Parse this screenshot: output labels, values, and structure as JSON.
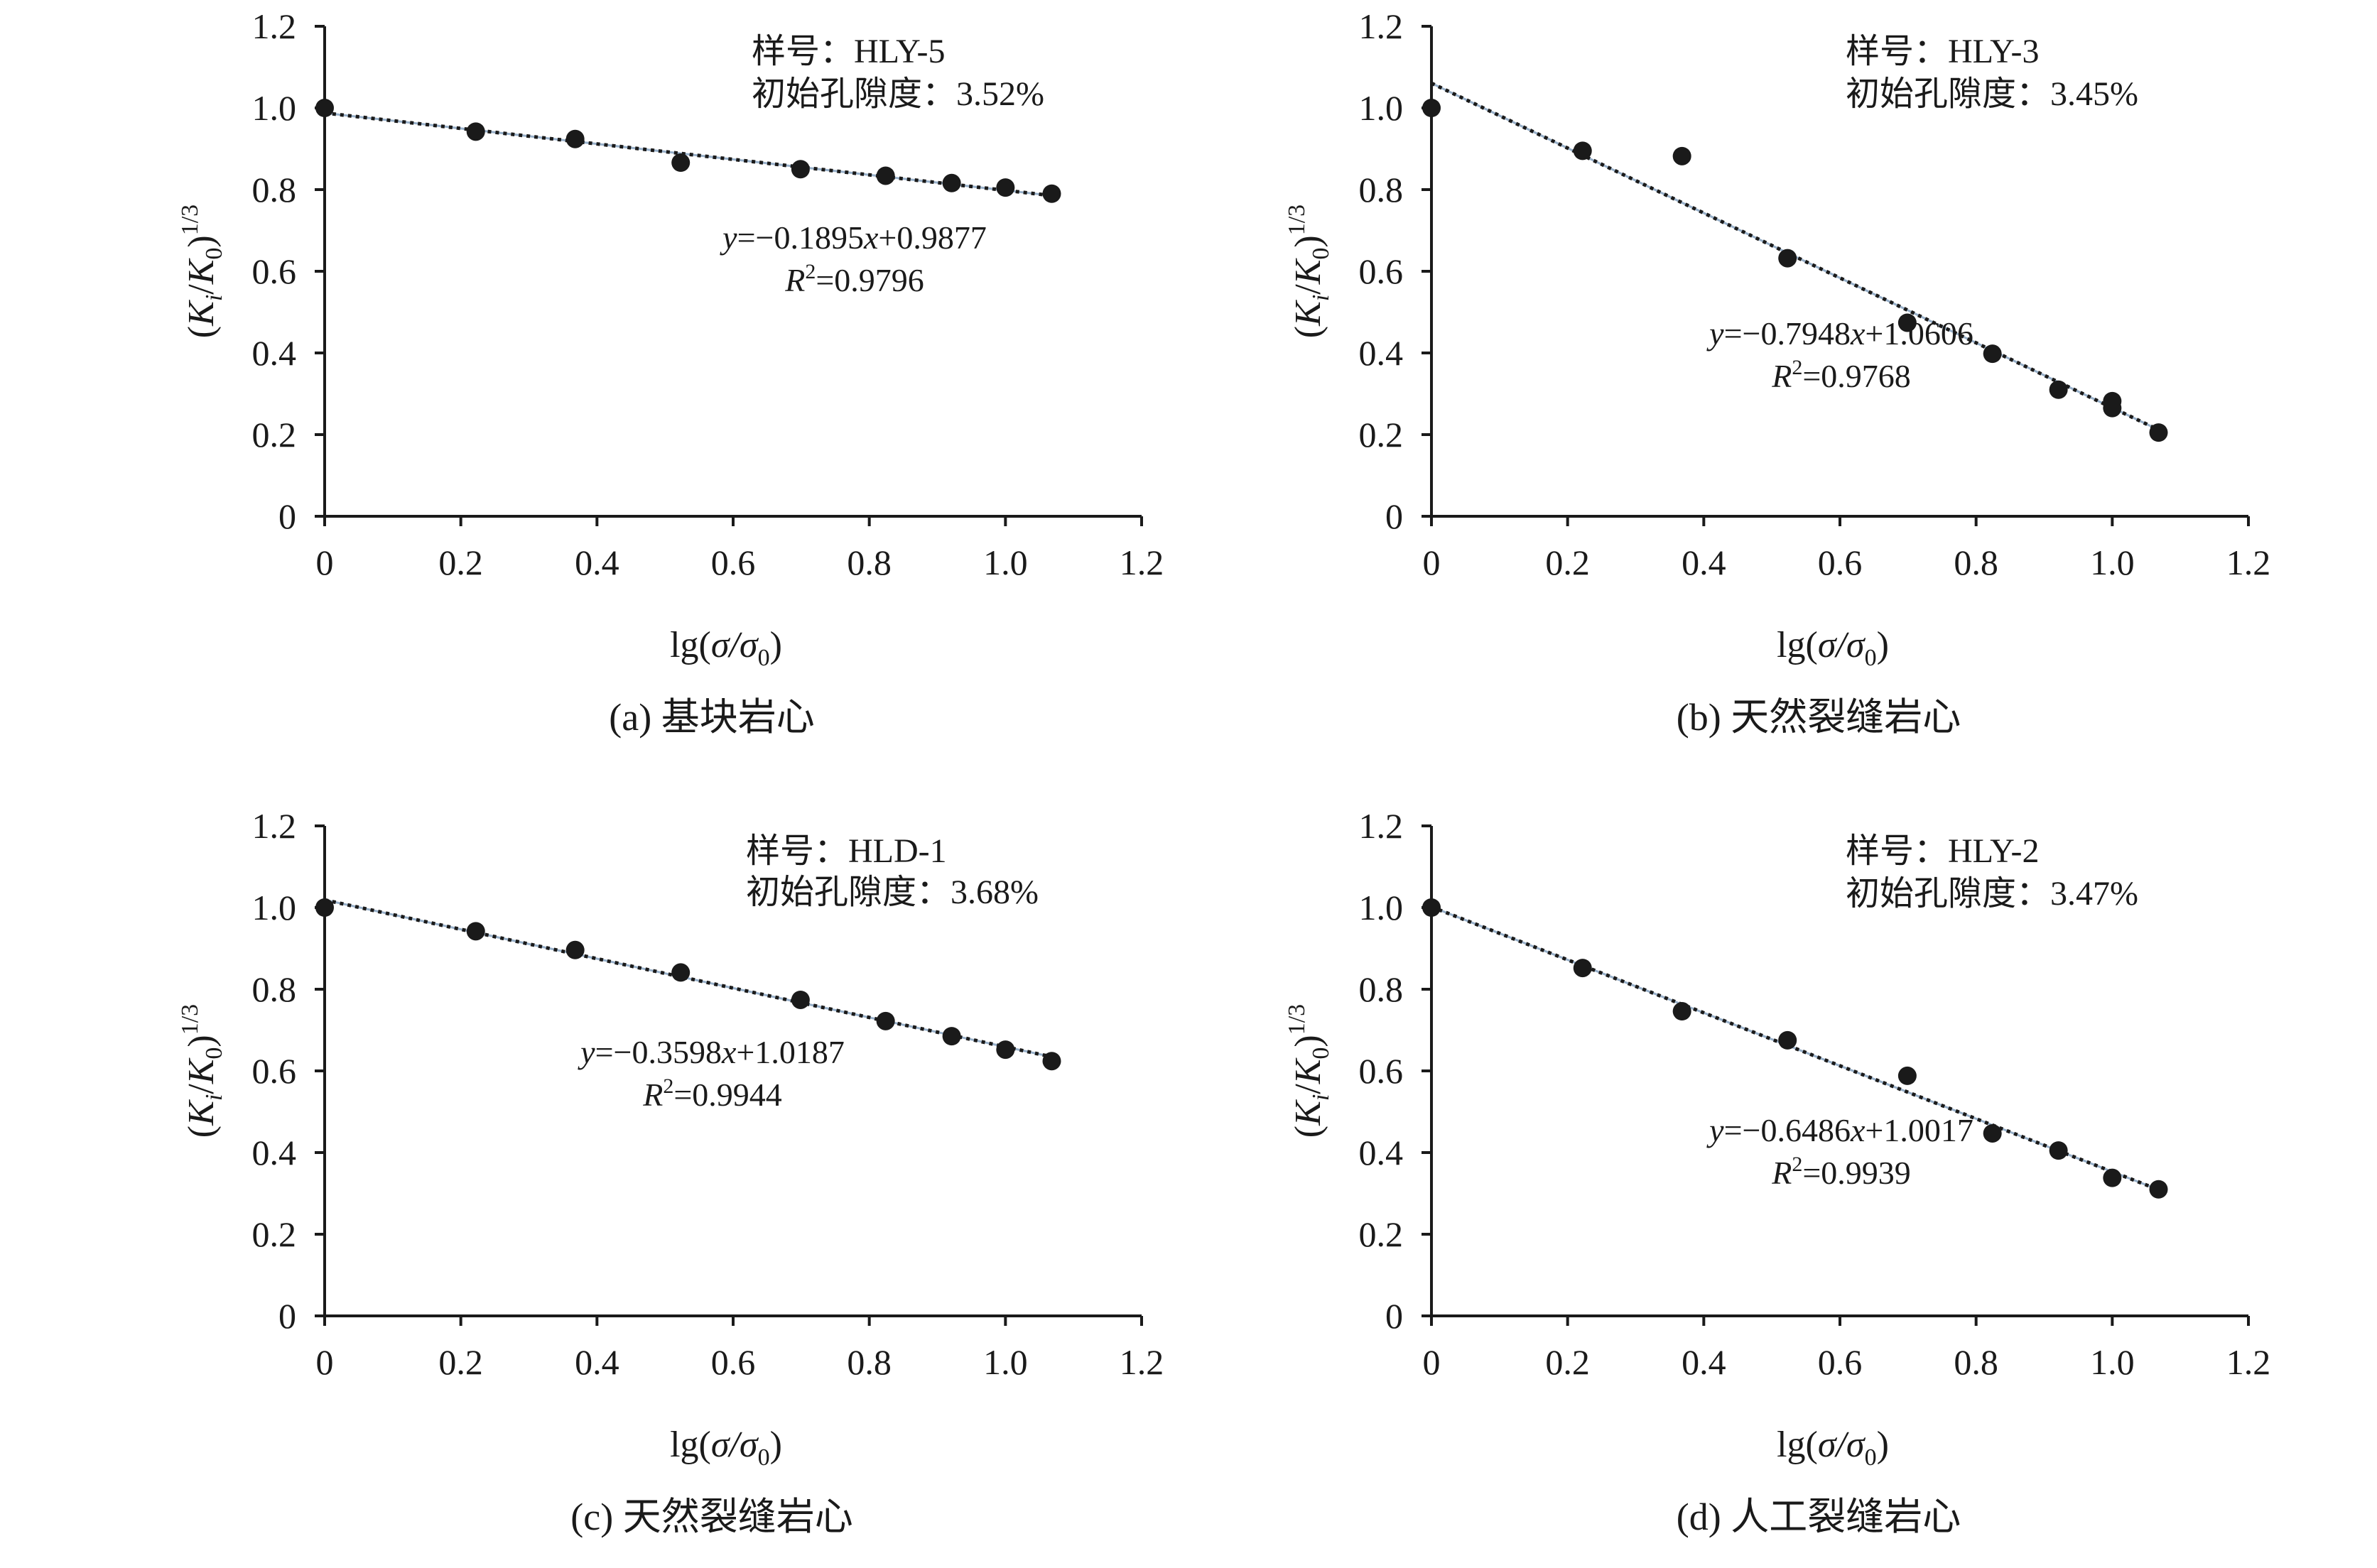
{
  "chart_data": [
    {
      "type": "scatter",
      "panel": "(a)",
      "caption": "(a) 基块岩心",
      "sample_label": "样号：HLY-5",
      "porosity_label": "初始孔隙度：3.52%",
      "equation": "y=−0.1895x+0.9877",
      "r2": "R2=0.9796",
      "r2_value": "=0.9796",
      "xlabel": "lg(σ/σ0)",
      "ylabel": "(Ki/K0)1/3",
      "xlim": [
        0,
        1.2
      ],
      "ylim": [
        0,
        1.2
      ],
      "xticks": [
        "0",
        "0.2",
        "0.4",
        "0.6",
        "0.8",
        "1.0",
        "1.2"
      ],
      "yticks": [
        "0",
        "0.2",
        "0.4",
        "0.6",
        "0.8",
        "1.0",
        "1.2"
      ],
      "grid": false,
      "series": [
        {
          "x": [
            0,
            0.222,
            0.368,
            0.523,
            0.699,
            0.824,
            0.921,
            1.0,
            1.068
          ],
          "y": [
            1.0,
            0.942,
            0.924,
            0.866,
            0.85,
            0.834,
            0.816,
            0.805,
            0.79
          ]
        }
      ],
      "trendline": {
        "slope": -0.1895,
        "intercept": 0.9877
      }
    },
    {
      "type": "scatter",
      "panel": "(b)",
      "caption": "(b) 天然裂缝岩心",
      "sample_label": "样号：HLY-3",
      "porosity_label": "初始孔隙度：3.45%",
      "equation": "y=−0.7948x+1.0606",
      "r2": "R2=0.9768",
      "r2_value": "=0.9768",
      "xlabel": "lg(σ/σ0)",
      "ylabel": "(Ki/K0)1/3",
      "xlim": [
        0,
        1.2
      ],
      "ylim": [
        0,
        1.2
      ],
      "xticks": [
        "0",
        "0.2",
        "0.4",
        "0.6",
        "0.8",
        "1.0",
        "1.2"
      ],
      "yticks": [
        "0",
        "0.2",
        "0.4",
        "0.6",
        "0.8",
        "1.0",
        "1.2"
      ],
      "grid": false,
      "series": [
        {
          "x": [
            0,
            0.222,
            0.368,
            0.523,
            0.699,
            0.824,
            0.921,
            1.0,
            1.0,
            1.068
          ],
          "y": [
            1.0,
            0.895,
            0.882,
            0.632,
            0.474,
            0.398,
            0.31,
            0.282,
            0.265,
            0.205
          ]
        }
      ],
      "trendline": {
        "slope": -0.7948,
        "intercept": 1.0606
      }
    },
    {
      "type": "scatter",
      "panel": "(c)",
      "caption": "(c) 天然裂缝岩心",
      "sample_label": "样号：HLD-1",
      "porosity_label": "初始孔隙度：3.68%",
      "equation": "y=−0.3598x+1.0187",
      "r2": "R2=0.9944",
      "r2_value": "=0.9944",
      "xlabel": "lg(σ/σ0)",
      "ylabel": "(Ki/K0)1/3",
      "xlim": [
        0,
        1.2
      ],
      "ylim": [
        0,
        1.2
      ],
      "xticks": [
        "0",
        "0.2",
        "0.4",
        "0.6",
        "0.8",
        "1.0",
        "1.2"
      ],
      "yticks": [
        "0",
        "0.2",
        "0.4",
        "0.6",
        "0.8",
        "1.0",
        "1.2"
      ],
      "grid": false,
      "series": [
        {
          "x": [
            0,
            0.222,
            0.368,
            0.523,
            0.699,
            0.824,
            0.921,
            1.0,
            1.068
          ],
          "y": [
            1.0,
            0.942,
            0.896,
            0.841,
            0.774,
            0.722,
            0.685,
            0.652,
            0.624
          ]
        }
      ],
      "trendline": {
        "slope": -0.3598,
        "intercept": 1.0187
      }
    },
    {
      "type": "scatter",
      "panel": "(d)",
      "caption": "(d) 人工裂缝岩心",
      "sample_label": "样号：HLY-2",
      "porosity_label": "初始孔隙度：3.47%",
      "equation": "y=−0.6486x+1.0017",
      "r2": "R2=0.9939",
      "r2_value": "=0.9939",
      "xlabel": "lg(σ/σ0)",
      "ylabel": "(Ki/K0)1/3",
      "xlim": [
        0,
        1.2
      ],
      "ylim": [
        0,
        1.2
      ],
      "xticks": [
        "0",
        "0.2",
        "0.4",
        "0.6",
        "0.8",
        "1.0",
        "1.2"
      ],
      "yticks": [
        "0",
        "0.2",
        "0.4",
        "0.6",
        "0.8",
        "1.0",
        "1.2"
      ],
      "grid": false,
      "series": [
        {
          "x": [
            0,
            0.222,
            0.368,
            0.523,
            0.699,
            0.824,
            0.921,
            1.0,
            1.068
          ],
          "y": [
            1.0,
            0.852,
            0.746,
            0.675,
            0.588,
            0.447,
            0.405,
            0.338,
            0.31
          ]
        }
      ],
      "trendline": {
        "slope": -0.6486,
        "intercept": 1.0017
      }
    }
  ],
  "colors": {
    "marker": "#1a1a1a",
    "axis": "#1a1a1a",
    "trendline": "#1a1a1a",
    "trendline_under": "#6d8fb3"
  }
}
